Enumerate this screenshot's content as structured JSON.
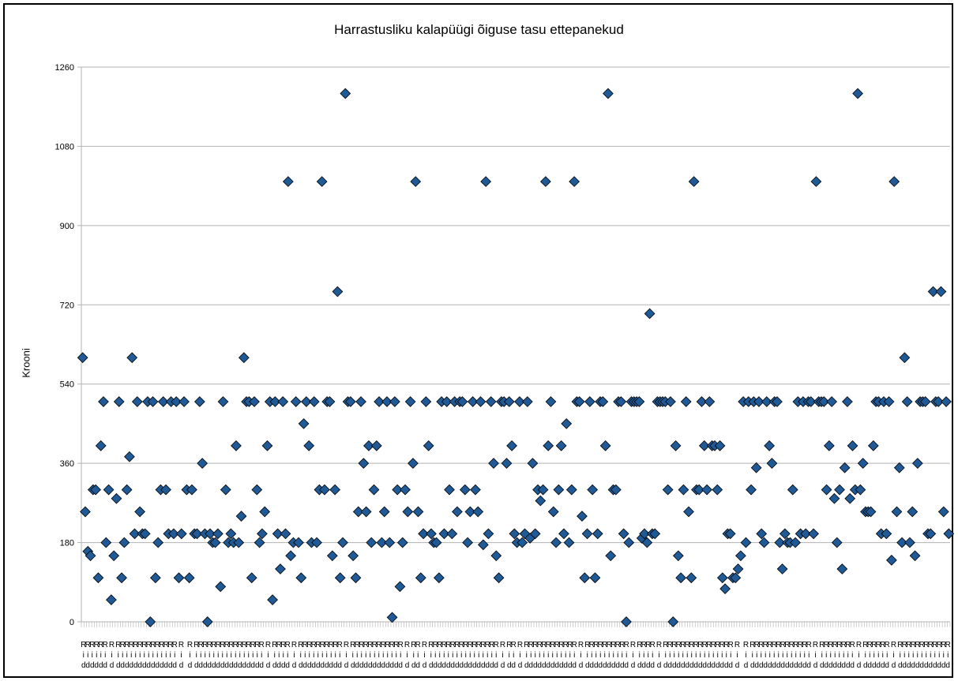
{
  "chart_data": {
    "type": "scatter",
    "title": "Harrastusliku kalapüügi õiguse tasu ettepanekud",
    "xlabel": "",
    "ylabel": "Krooni",
    "ylim": [
      0,
      1260
    ],
    "yticks": [
      0,
      180,
      360,
      540,
      720,
      900,
      1080,
      1260
    ],
    "grid": "horizontal",
    "legend": "none",
    "category_label": "Rid",
    "marker": "diamond",
    "marker_color": "#1f5a96",
    "values": [
      600,
      250,
      160,
      150,
      300,
      300,
      100,
      400,
      500,
      180,
      300,
      50,
      150,
      280,
      500,
      100,
      180,
      300,
      375,
      600,
      200,
      500,
      250,
      200,
      200,
      500,
      0,
      500,
      100,
      180,
      300,
      500,
      300,
      200,
      500,
      200,
      500,
      100,
      200,
      500,
      300,
      100,
      300,
      200,
      200,
      500,
      360,
      200,
      0,
      200,
      180,
      180,
      200,
      80,
      500,
      300,
      180,
      200,
      180,
      400,
      180,
      240,
      600,
      500,
      500,
      100,
      500,
      300,
      180,
      200,
      250,
      400,
      500,
      50,
      500,
      200,
      120,
      500,
      200,
      1000,
      150,
      180,
      500,
      180,
      100,
      450,
      500,
      400,
      180,
      500,
      180,
      300,
      1000,
      300,
      500,
      500,
      150,
      300,
      750,
      100,
      180,
      1200,
      500,
      500,
      150,
      100,
      250,
      500,
      360,
      250,
      400,
      180,
      300,
      400,
      500,
      180,
      250,
      500,
      180,
      10,
      500,
      300,
      80,
      180,
      300,
      250,
      500,
      360,
      1000,
      250,
      100,
      200,
      500,
      400,
      200,
      180,
      180,
      100,
      500,
      200,
      500,
      300,
      200,
      500,
      250,
      500,
      500,
      300,
      180,
      250,
      500,
      300,
      250,
      500,
      175,
      1000,
      200,
      500,
      360,
      150,
      100,
      500,
      500,
      360,
      500,
      400,
      200,
      180,
      500,
      180,
      200,
      500,
      190,
      360,
      200,
      300,
      275,
      300,
      1000,
      400,
      500,
      250,
      180,
      300,
      400,
      200,
      450,
      180,
      300,
      1000,
      500,
      500,
      240,
      100,
      200,
      500,
      300,
      100,
      200,
      500,
      500,
      400,
      1200,
      150,
      300,
      300,
      500,
      500,
      200,
      0,
      180,
      500,
      500,
      500,
      500,
      190,
      200,
      180,
      700,
      200,
      200,
      500,
      500,
      500,
      500,
      300,
      500,
      0,
      400,
      150,
      100,
      300,
      500,
      250,
      100,
      1000,
      300,
      300,
      500,
      400,
      300,
      500,
      400,
      400,
      300,
      400,
      100,
      75,
      200,
      200,
      100,
      100,
      120,
      150,
      500,
      180,
      500,
      300,
      500,
      350,
      500,
      200,
      180,
      500,
      400,
      360,
      500,
      500,
      180,
      120,
      200,
      180,
      180,
      300,
      180,
      500,
      200,
      500,
      200,
      500,
      500,
      200,
      1000,
      500,
      500,
      500,
      300,
      400,
      500,
      280,
      180,
      300,
      120,
      350,
      500,
      280,
      400,
      300,
      1200,
      300,
      360,
      250,
      250,
      250,
      400,
      500,
      500,
      200,
      500,
      200,
      500,
      140,
      1000,
      250,
      350,
      180,
      600,
      500,
      180,
      250,
      150,
      360,
      500,
      500,
      500,
      200,
      200,
      750,
      500,
      500,
      750,
      250,
      500,
      200
    ]
  }
}
